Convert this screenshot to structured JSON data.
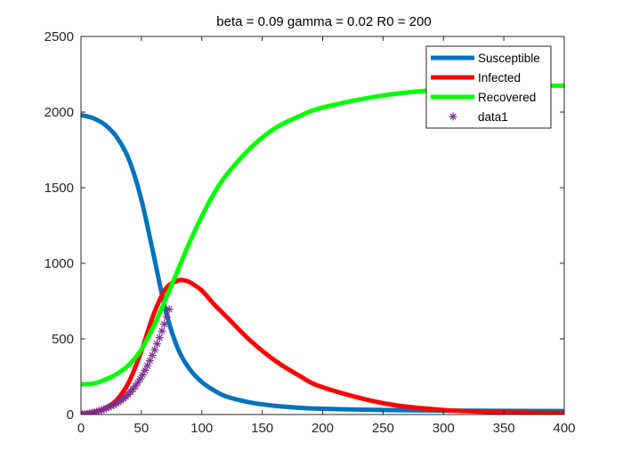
{
  "chart_data": {
    "type": "line",
    "title": "beta = 0.09  gamma = 0.02  R0 = 200",
    "xlabel": "",
    "ylabel": "",
    "xlim": [
      0,
      400
    ],
    "ylim": [
      0,
      2500
    ],
    "xticks": [
      0,
      50,
      100,
      150,
      200,
      250,
      300,
      350,
      400
    ],
    "yticks": [
      0,
      500,
      1000,
      1500,
      2000,
      2500
    ],
    "grid": false,
    "legend_position": "top-right",
    "series": [
      {
        "name": "Susceptible",
        "color": "#0072BD",
        "style": "line",
        "x": [
          0,
          10,
          20,
          30,
          40,
          50,
          60,
          70,
          80,
          90,
          100,
          110,
          120,
          140,
          160,
          180,
          200,
          250,
          300,
          350,
          400
        ],
        "y": [
          1980,
          1960,
          1915,
          1830,
          1680,
          1420,
          1060,
          690,
          440,
          300,
          215,
          160,
          120,
          80,
          58,
          45,
          38,
          30,
          26,
          24,
          23
        ]
      },
      {
        "name": "Infected",
        "color": "#FF0000",
        "style": "line",
        "x": [
          0,
          10,
          20,
          30,
          40,
          50,
          60,
          70,
          80,
          85,
          90,
          100,
          110,
          120,
          140,
          160,
          180,
          200,
          250,
          300,
          350,
          400
        ],
        "y": [
          5,
          15,
          40,
          100,
          220,
          420,
          660,
          830,
          885,
          888,
          875,
          820,
          730,
          650,
          490,
          360,
          260,
          180,
          75,
          30,
          15,
          10
        ]
      },
      {
        "name": "Recovered",
        "color": "#00FF00",
        "style": "line",
        "x": [
          0,
          10,
          20,
          30,
          40,
          50,
          60,
          70,
          80,
          90,
          100,
          110,
          120,
          140,
          160,
          180,
          200,
          250,
          300,
          350,
          400
        ],
        "y": [
          200,
          205,
          230,
          270,
          330,
          430,
          580,
          760,
          950,
          1140,
          1310,
          1460,
          1580,
          1760,
          1890,
          1970,
          2030,
          2110,
          2150,
          2170,
          2175
        ]
      },
      {
        "name": "data1",
        "color": "#7E2F8E",
        "style": "marker",
        "marker": "asterisk",
        "x": [
          1,
          3,
          5,
          7,
          9,
          11,
          13,
          15,
          17,
          19,
          21,
          23,
          25,
          27,
          29,
          31,
          33,
          35,
          37,
          39,
          41,
          43,
          45,
          47,
          49,
          51,
          53,
          55,
          57,
          59,
          61,
          63,
          65,
          67,
          69,
          71,
          73
        ],
        "y": [
          1,
          3,
          5,
          8,
          11,
          15,
          19,
          24,
          29,
          34,
          40,
          47,
          55,
          63,
          72,
          82,
          93,
          105,
          118,
          133,
          150,
          168,
          188,
          210,
          235,
          262,
          292,
          323,
          356,
          391,
          428,
          467,
          508,
          552,
          598,
          646,
          696
        ]
      }
    ]
  }
}
